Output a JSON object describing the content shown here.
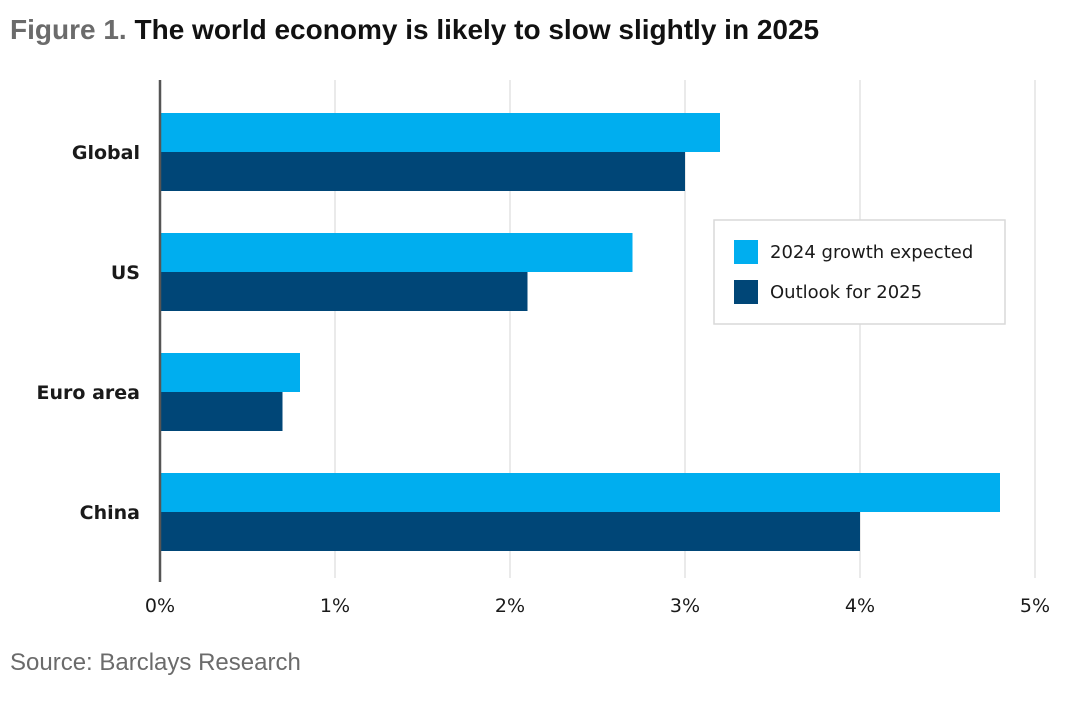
{
  "header": {
    "figure_label": "Figure 1.",
    "title": "The world economy is likely to slow slightly in 2025"
  },
  "source": "Source: Barclays Research",
  "colors": {
    "series_2024": "#00aeef",
    "series_2025": "#004677",
    "grid": "#e3e3e3",
    "axis": "#555555"
  },
  "chart_data": {
    "type": "bar",
    "orientation": "horizontal",
    "title": "The world economy is likely to slow slightly in 2025",
    "categories": [
      "Global",
      "US",
      "Euro area",
      "China"
    ],
    "series": [
      {
        "name": "2024 growth expected",
        "values": [
          3.2,
          2.7,
          0.8,
          4.8
        ]
      },
      {
        "name": "Outlook for 2025",
        "values": [
          3.0,
          2.1,
          0.7,
          4.0
        ]
      }
    ],
    "xlim": [
      0,
      5
    ],
    "x_ticks": [
      "0%",
      "1%",
      "2%",
      "3%",
      "4%",
      "5%"
    ],
    "xlabel": "",
    "ylabel": "",
    "grid": true,
    "legend_position": "right"
  }
}
